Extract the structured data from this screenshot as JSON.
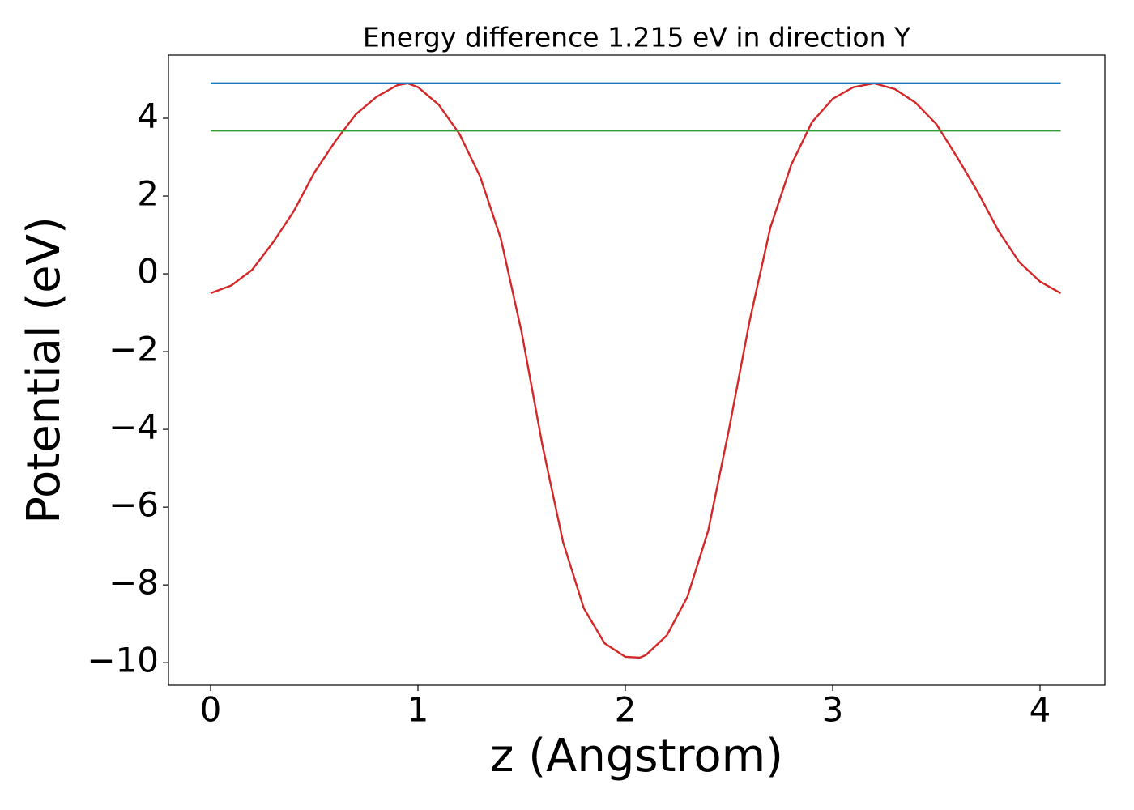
{
  "chart_data": {
    "type": "line",
    "title": "Energy difference 1.215 eV in direction Y",
    "xlabel": "z (Angstrom)",
    "ylabel": "Potential (eV)",
    "xlim": [
      -0.203,
      4.3125
    ],
    "ylim": [
      -10.58,
      5.625
    ],
    "xticks": [
      0,
      1,
      2,
      3,
      4
    ],
    "yticks": [
      4,
      2,
      0,
      {
        "value": -2,
        "label": "−2"
      },
      {
        "value": -4,
        "label": "−4"
      },
      {
        "value": -6,
        "label": "−6"
      },
      {
        "value": -8,
        "label": "−8"
      },
      {
        "value": -10,
        "label": "−10"
      }
    ],
    "series": [
      {
        "color": "#d62728",
        "x": [
          0,
          0.1,
          0.2,
          0.3,
          0.4,
          0.5,
          0.6,
          0.7,
          0.8,
          0.9,
          0.95,
          1.0,
          1.1,
          1.2,
          1.3,
          1.4,
          1.5,
          1.6,
          1.7,
          1.8,
          1.9,
          2.0,
          2.07,
          2.1,
          2.2,
          2.3,
          2.4,
          2.5,
          2.6,
          2.7,
          2.8,
          2.9,
          3.0,
          3.1,
          3.2,
          3.3,
          3.4,
          3.5,
          3.6,
          3.7,
          3.8,
          3.9,
          4.0,
          4.1
        ],
        "values": [
          -0.5,
          -0.3,
          0.1,
          0.8,
          1.6,
          2.6,
          3.4,
          4.1,
          4.55,
          4.85,
          4.9,
          4.8,
          4.35,
          3.6,
          2.5,
          0.9,
          -1.5,
          -4.4,
          -6.9,
          -8.6,
          -9.5,
          -9.85,
          -9.87,
          -9.8,
          -9.3,
          -8.3,
          -6.6,
          -4.0,
          -1.2,
          1.2,
          2.8,
          3.9,
          4.5,
          4.8,
          4.9,
          4.75,
          4.4,
          3.85,
          3.0,
          2.1,
          1.1,
          0.3,
          -0.2,
          -0.5
        ]
      },
      {
        "color": "#1f77b4",
        "x": [
          0,
          4.1
        ],
        "values": [
          4.9,
          4.9
        ]
      },
      {
        "color": "#2ca02c",
        "x": [
          0,
          4.1
        ],
        "values": [
          3.685,
          3.685
        ]
      }
    ]
  }
}
